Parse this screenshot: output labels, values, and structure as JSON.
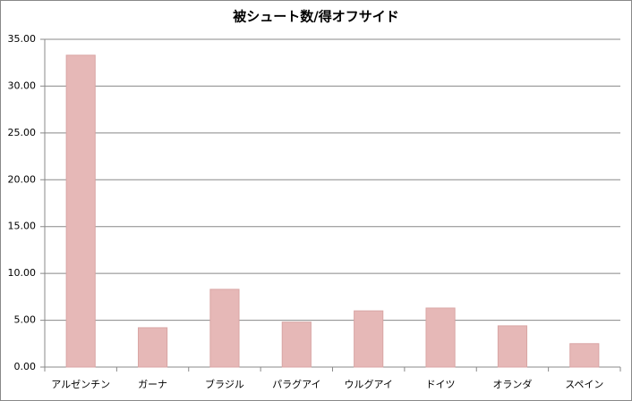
{
  "chart_data": {
    "type": "bar",
    "title": "被シュート数/得オフサイド",
    "categories": [
      "アルゼンチン",
      "ガーナ",
      "ブラジル",
      "パラグアイ",
      "ウルグアイ",
      "ドイツ",
      "オランダ",
      "スペイン"
    ],
    "values": [
      33.3,
      4.2,
      8.3,
      4.8,
      6.0,
      6.3,
      4.4,
      2.5
    ],
    "color": "#e6b8b7",
    "ylim": [
      0,
      35
    ],
    "yticks": [
      {
        "value": 0,
        "label": "0.00"
      },
      {
        "value": 5,
        "label": "5.00"
      },
      {
        "value": 10,
        "label": "10.00"
      },
      {
        "value": 15,
        "label": "15.00"
      },
      {
        "value": 20,
        "label": "20.00"
      },
      {
        "value": 25,
        "label": "25.00"
      },
      {
        "value": 30,
        "label": "30.00"
      },
      {
        "value": 35,
        "label": "35.00"
      }
    ],
    "grid": true
  }
}
